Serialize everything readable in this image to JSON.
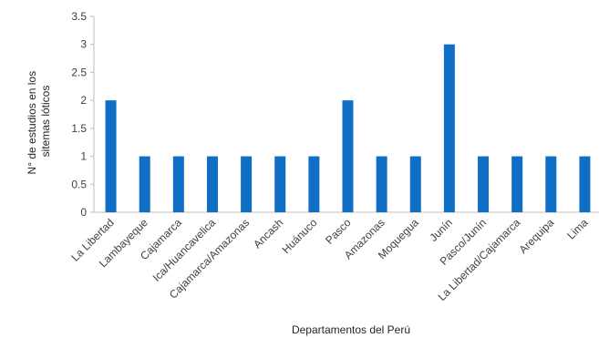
{
  "chart_data": {
    "type": "bar",
    "xlabel": "Departamentos del Perú",
    "ylabel": "N° de estudios en los sitemas lóticos",
    "ylabel_lines": [
      "N° de estudios en los",
      "sitemas lóticos"
    ],
    "ylim": [
      0,
      3.5
    ],
    "yticks": [
      "0",
      "0.5",
      "1",
      "1.5",
      "2",
      "2.5",
      "3",
      "3.5"
    ],
    "ytick_values": [
      0,
      0.5,
      1,
      1.5,
      2,
      2.5,
      3,
      3.5
    ],
    "grid": false,
    "legend": "none",
    "bar_color": "#0F6FC6",
    "categories": [
      "La Libertad",
      "Lambayeque",
      "Cajamarca",
      "Ica/Huancavelica",
      "Cajamarca/Amazonas",
      "Ancash",
      "Huánuco",
      "Pasco",
      "Amazonas",
      "Moquegua",
      "Junín",
      "Pasco/Junín",
      "La Libertad/Cajamarca",
      "Arequipa",
      "Lima"
    ],
    "values": [
      2,
      1,
      1,
      1,
      1,
      1,
      1,
      2,
      1,
      1,
      3,
      1,
      1,
      1,
      1
    ]
  }
}
